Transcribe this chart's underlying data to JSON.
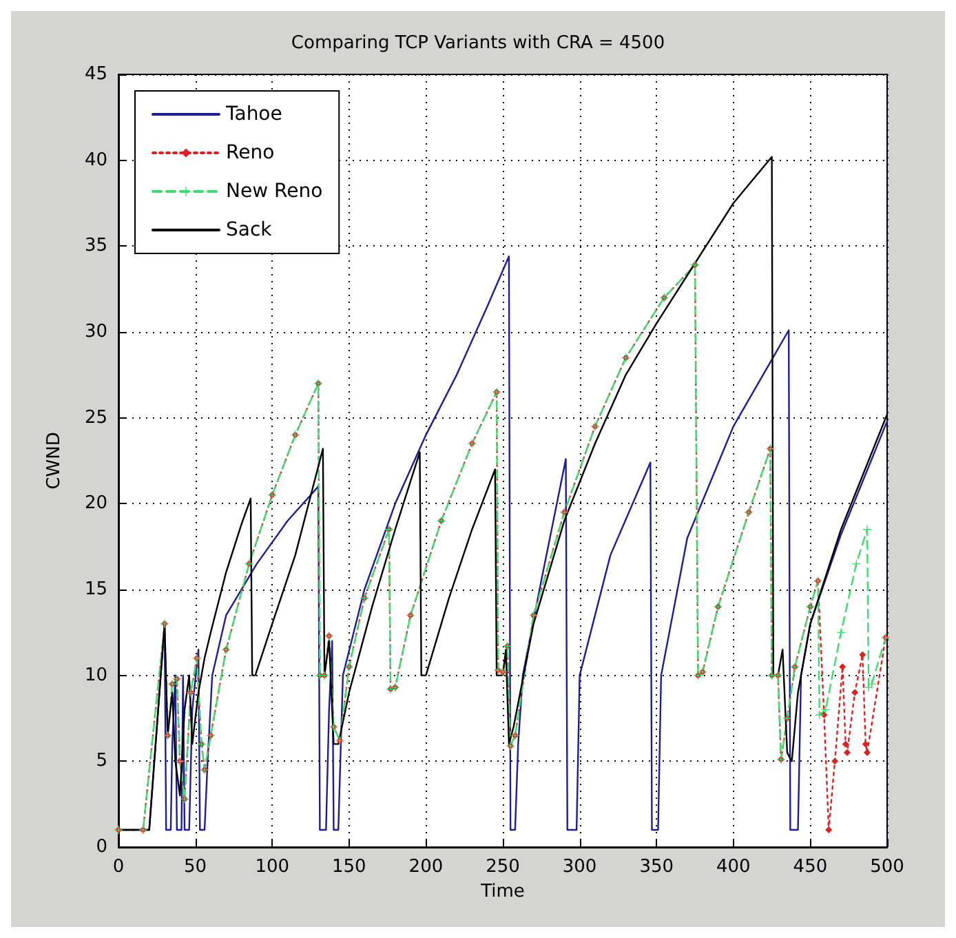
{
  "chart_data": {
    "type": "line",
    "title": "Comparing TCP Variants with CRA = 4500",
    "xlabel": "Time",
    "ylabel": "CWND",
    "xlim": [
      0,
      500
    ],
    "ylim": [
      0,
      45
    ],
    "xticks": [
      0,
      50,
      100,
      150,
      200,
      250,
      300,
      350,
      400,
      450,
      500
    ],
    "yticks": [
      0,
      5,
      10,
      15,
      20,
      25,
      30,
      35,
      40,
      45
    ],
    "grid": true,
    "legend": "top left",
    "series": [
      {
        "name": "Tahoe",
        "color": "#1c1c9c",
        "line_style": "solid",
        "x": [
          0,
          20,
          30,
          31,
          34,
          35,
          37,
          38,
          41,
          42,
          43,
          46,
          48,
          52,
          53,
          56,
          58,
          61,
          70,
          90,
          110,
          130,
          131,
          135,
          137,
          139,
          140,
          143,
          146,
          160,
          180,
          200,
          220,
          240,
          254,
          255,
          258,
          260,
          263,
          275,
          291,
          292,
          298,
          300,
          320,
          346,
          347,
          351,
          353,
          370,
          400,
          436,
          437,
          442,
          444,
          450,
          470,
          500
        ],
        "values": [
          1,
          1,
          13,
          1,
          1,
          6,
          10,
          1,
          1,
          10,
          1,
          1,
          8,
          11.5,
          1,
          1,
          5,
          10,
          13.5,
          16.5,
          19,
          21,
          1,
          1,
          8,
          12,
          1,
          1,
          10,
          15,
          20,
          24,
          27.5,
          31.5,
          34.4,
          1,
          1,
          6,
          10,
          15.5,
          22.6,
          1,
          1,
          10,
          17,
          22.4,
          1,
          1,
          10,
          18,
          24.5,
          30.1,
          1,
          1,
          10,
          13,
          18.2,
          24.8
        ]
      },
      {
        "name": "Reno",
        "color": "#e02020",
        "line_style": "dotted",
        "marker": "diamond",
        "x": [
          0,
          16,
          30,
          32,
          35,
          38,
          40,
          43,
          47,
          51,
          54,
          56,
          60,
          70,
          85,
          100,
          115,
          130,
          131,
          134,
          137,
          140,
          144,
          150,
          160,
          176,
          177,
          180,
          190,
          210,
          230,
          246,
          247,
          250,
          253,
          255,
          258,
          270,
          290,
          310,
          330,
          355,
          375,
          377,
          380,
          390,
          410,
          424,
          425,
          429,
          431,
          435,
          440,
          450,
          455,
          459,
          462,
          466,
          471,
          473,
          474,
          479,
          484,
          486,
          487,
          499
        ],
        "values": [
          1,
          1,
          13,
          6.5,
          9.5,
          9.8,
          5,
          2.8,
          9,
          11,
          6,
          4.5,
          6.5,
          11.5,
          16.5,
          20.5,
          24,
          27,
          10,
          10,
          12.3,
          7,
          6.2,
          10.5,
          14.5,
          18.5,
          9.2,
          9.3,
          13.5,
          19,
          23.5,
          26.5,
          10.3,
          10.2,
          11.7,
          5.9,
          6.5,
          13.5,
          19.5,
          24.5,
          28.5,
          32,
          33.9,
          10,
          10.2,
          14,
          19.5,
          23.2,
          10,
          10,
          5.1,
          7.5,
          10.5,
          14,
          15.5,
          7.7,
          1,
          5,
          10.5,
          6,
          5.5,
          9,
          11.2,
          6,
          5.5,
          12.2
        ]
      },
      {
        "name": "New Reno",
        "color": "#3ddc6e",
        "line_style": "dashed",
        "marker": "cross",
        "x": [
          0,
          16,
          30,
          32,
          35,
          38,
          40,
          43,
          47,
          51,
          54,
          56,
          60,
          70,
          85,
          100,
          115,
          130,
          131,
          134,
          137,
          140,
          144,
          150,
          160,
          176,
          177,
          180,
          190,
          210,
          230,
          246,
          247,
          250,
          253,
          255,
          258,
          270,
          290,
          310,
          330,
          355,
          375,
          377,
          380,
          390,
          410,
          424,
          425,
          429,
          431,
          435,
          440,
          450,
          455,
          456,
          460,
          470,
          480,
          487,
          488,
          490,
          499
        ],
        "values": [
          1,
          1,
          13,
          6.5,
          9.5,
          9.8,
          5,
          2.8,
          9,
          11,
          6,
          4.5,
          6.5,
          11.5,
          16.5,
          20.5,
          24,
          27,
          10,
          10,
          12.3,
          7,
          6.2,
          10.5,
          14.5,
          18.5,
          9.2,
          9.3,
          13.5,
          19,
          23.5,
          26.5,
          10.3,
          10.2,
          11.7,
          5.9,
          6.5,
          13.5,
          19.5,
          24.5,
          28.5,
          32,
          33.9,
          10,
          10.2,
          14,
          19.5,
          23.2,
          10,
          10,
          5.1,
          7.5,
          10.5,
          14,
          15.5,
          7.7,
          8,
          12.5,
          16.5,
          18.5,
          9.3,
          9.5,
          12.2
        ]
      },
      {
        "name": "Sack",
        "color": "#000000",
        "line_style": "solid",
        "x": [
          0,
          20,
          30,
          32,
          35,
          37,
          40,
          43,
          46,
          48,
          52,
          56,
          60,
          70,
          80,
          86,
          87,
          89,
          100,
          115,
          133,
          134,
          137,
          140,
          143,
          150,
          165,
          180,
          196,
          197,
          200,
          215,
          230,
          245,
          246,
          250,
          252,
          254,
          257,
          270,
          290,
          310,
          330,
          350,
          375,
          400,
          425,
          426,
          429,
          432,
          435,
          438,
          442,
          450,
          470,
          500
        ],
        "values": [
          1,
          1,
          13,
          6.5,
          9,
          5,
          3,
          8,
          10,
          6,
          9,
          11,
          12.5,
          16,
          18.8,
          20.3,
          10,
          10,
          13,
          17,
          23.2,
          10,
          12,
          6,
          6,
          9,
          14,
          18.5,
          23,
          10,
          10,
          14.5,
          18.5,
          22,
          10,
          10,
          11.5,
          6,
          7,
          13,
          19,
          23.5,
          27.5,
          30.5,
          34,
          37.5,
          40.2,
          10,
          10,
          11.5,
          5.5,
          5,
          9,
          13,
          18.5,
          25.2
        ]
      }
    ]
  }
}
